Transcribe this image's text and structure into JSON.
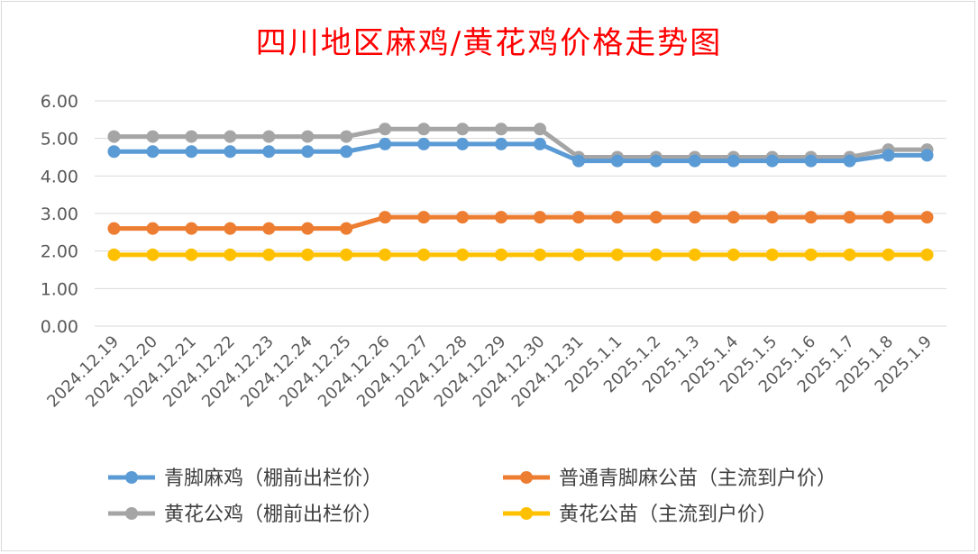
{
  "chart_data": {
    "type": "line",
    "title": "四川地区麻鸡/黄花鸡价格走势图",
    "xlabel": "",
    "ylabel": "",
    "ylim": [
      0,
      6
    ],
    "y_ticks": [
      "0.00",
      "1.00",
      "2.00",
      "3.00",
      "4.00",
      "5.00",
      "6.00"
    ],
    "grid": true,
    "legend_position": "bottom",
    "categories": [
      "2024.12.19",
      "2024.12.20",
      "2024.12.21",
      "2024.12.22",
      "2024.12.23",
      "2024.12.24",
      "2024.12.25",
      "2024.12.26",
      "2024.12.27",
      "2024.12.28",
      "2024.12.29",
      "2024.12.30",
      "2024.12.31",
      "2025.1.1",
      "2025.1.2",
      "2025.1.3",
      "2025.1.4",
      "2025.1.5",
      "2025.1.6",
      "2025.1.7",
      "2025.1.8",
      "2025.1.9"
    ],
    "series": [
      {
        "name": "青脚麻鸡（棚前出栏价）",
        "color": "#5b9bd5",
        "values": [
          4.65,
          4.65,
          4.65,
          4.65,
          4.65,
          4.65,
          4.65,
          4.85,
          4.85,
          4.85,
          4.85,
          4.85,
          4.4,
          4.4,
          4.4,
          4.4,
          4.4,
          4.4,
          4.4,
          4.4,
          4.55,
          4.55
        ]
      },
      {
        "name": "普通青脚麻公苗（主流到户价）",
        "color": "#ed7d31",
        "values": [
          2.6,
          2.6,
          2.6,
          2.6,
          2.6,
          2.6,
          2.6,
          2.9,
          2.9,
          2.9,
          2.9,
          2.9,
          2.9,
          2.9,
          2.9,
          2.9,
          2.9,
          2.9,
          2.9,
          2.9,
          2.9,
          2.9
        ]
      },
      {
        "name": "黄花公鸡（棚前出栏价）",
        "color": "#a5a5a5",
        "values": [
          5.05,
          5.05,
          5.05,
          5.05,
          5.05,
          5.05,
          5.05,
          5.25,
          5.25,
          5.25,
          5.25,
          5.25,
          4.5,
          4.5,
          4.5,
          4.5,
          4.5,
          4.5,
          4.5,
          4.5,
          4.7,
          4.7
        ]
      },
      {
        "name": "黄花公苗（主流到户价）",
        "color": "#ffc000",
        "values": [
          1.9,
          1.9,
          1.9,
          1.9,
          1.9,
          1.9,
          1.9,
          1.9,
          1.9,
          1.9,
          1.9,
          1.9,
          1.9,
          1.9,
          1.9,
          1.9,
          1.9,
          1.9,
          1.9,
          1.9,
          1.9,
          1.9
        ]
      }
    ]
  }
}
